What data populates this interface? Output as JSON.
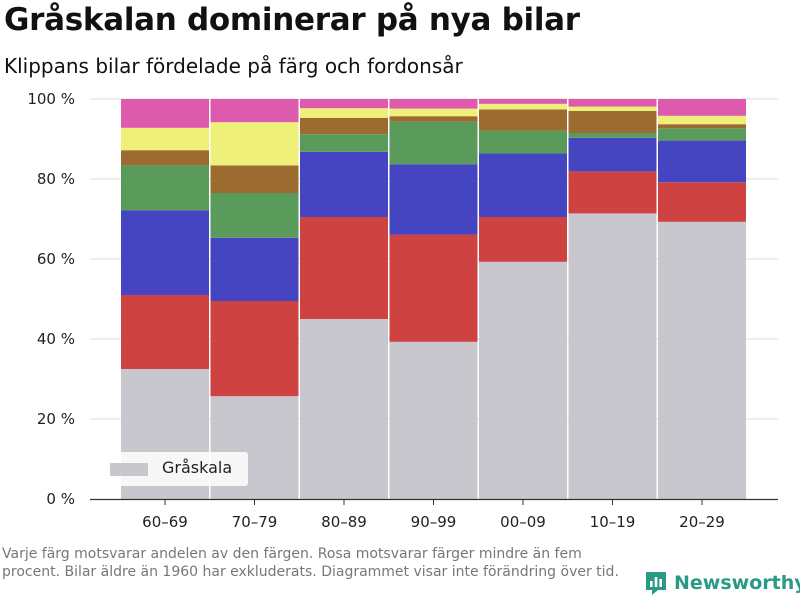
{
  "header": {
    "title": "Gråskalan dominerar på nya bilar",
    "subtitle": "Klippans bilar fördelade på färg och fordonsår"
  },
  "legend": {
    "label": "Gråskala",
    "color": "#c8c7ce"
  },
  "footnote": "Varje färg motsvarar andelen av den färgen. Rosa motsvarar färger mindre än fem procent. Bilar äldre än 1960 har exkluderats. Diagrammet visar inte förändring över tid.",
  "brand": {
    "name": "Newsworthy",
    "color": "#2b9a84"
  },
  "chart_data": {
    "type": "bar",
    "stacked": true,
    "categories": [
      "60–69",
      "70–79",
      "80–89",
      "90–99",
      "00–09",
      "10–19",
      "20–29"
    ],
    "series": [
      {
        "name": "Gråskala",
        "color": "#c8c7ce",
        "values": [
          32.5,
          25.7,
          45.0,
          39.3,
          59.3,
          71.4,
          69.3
        ]
      },
      {
        "color": "#cf4242",
        "values": [
          18.5,
          23.8,
          25.5,
          26.8,
          11.2,
          10.5,
          9.9
        ]
      },
      {
        "color": "#4545c2",
        "values": [
          21.2,
          15.8,
          16.3,
          17.6,
          15.9,
          8.4,
          10.4
        ]
      },
      {
        "color": "#5a9a5a",
        "values": [
          11.2,
          11.2,
          4.4,
          10.6,
          5.7,
          1.2,
          3.1
        ]
      },
      {
        "color": "#9c6b30",
        "values": [
          3.8,
          6.9,
          4.1,
          1.4,
          5.3,
          5.5,
          1.0
        ]
      },
      {
        "color": "#eef07a",
        "values": [
          5.6,
          10.8,
          2.4,
          1.9,
          1.4,
          1.1,
          2.1
        ]
      },
      {
        "color": "#dd5aad",
        "values": [
          7.2,
          5.8,
          2.3,
          2.4,
          1.2,
          1.9,
          4.2
        ]
      }
    ],
    "yticks": [
      "0 %",
      "20 %",
      "40 %",
      "60 %",
      "80 %",
      "100 %"
    ],
    "ylim": [
      0,
      100
    ],
    "grid": true
  }
}
